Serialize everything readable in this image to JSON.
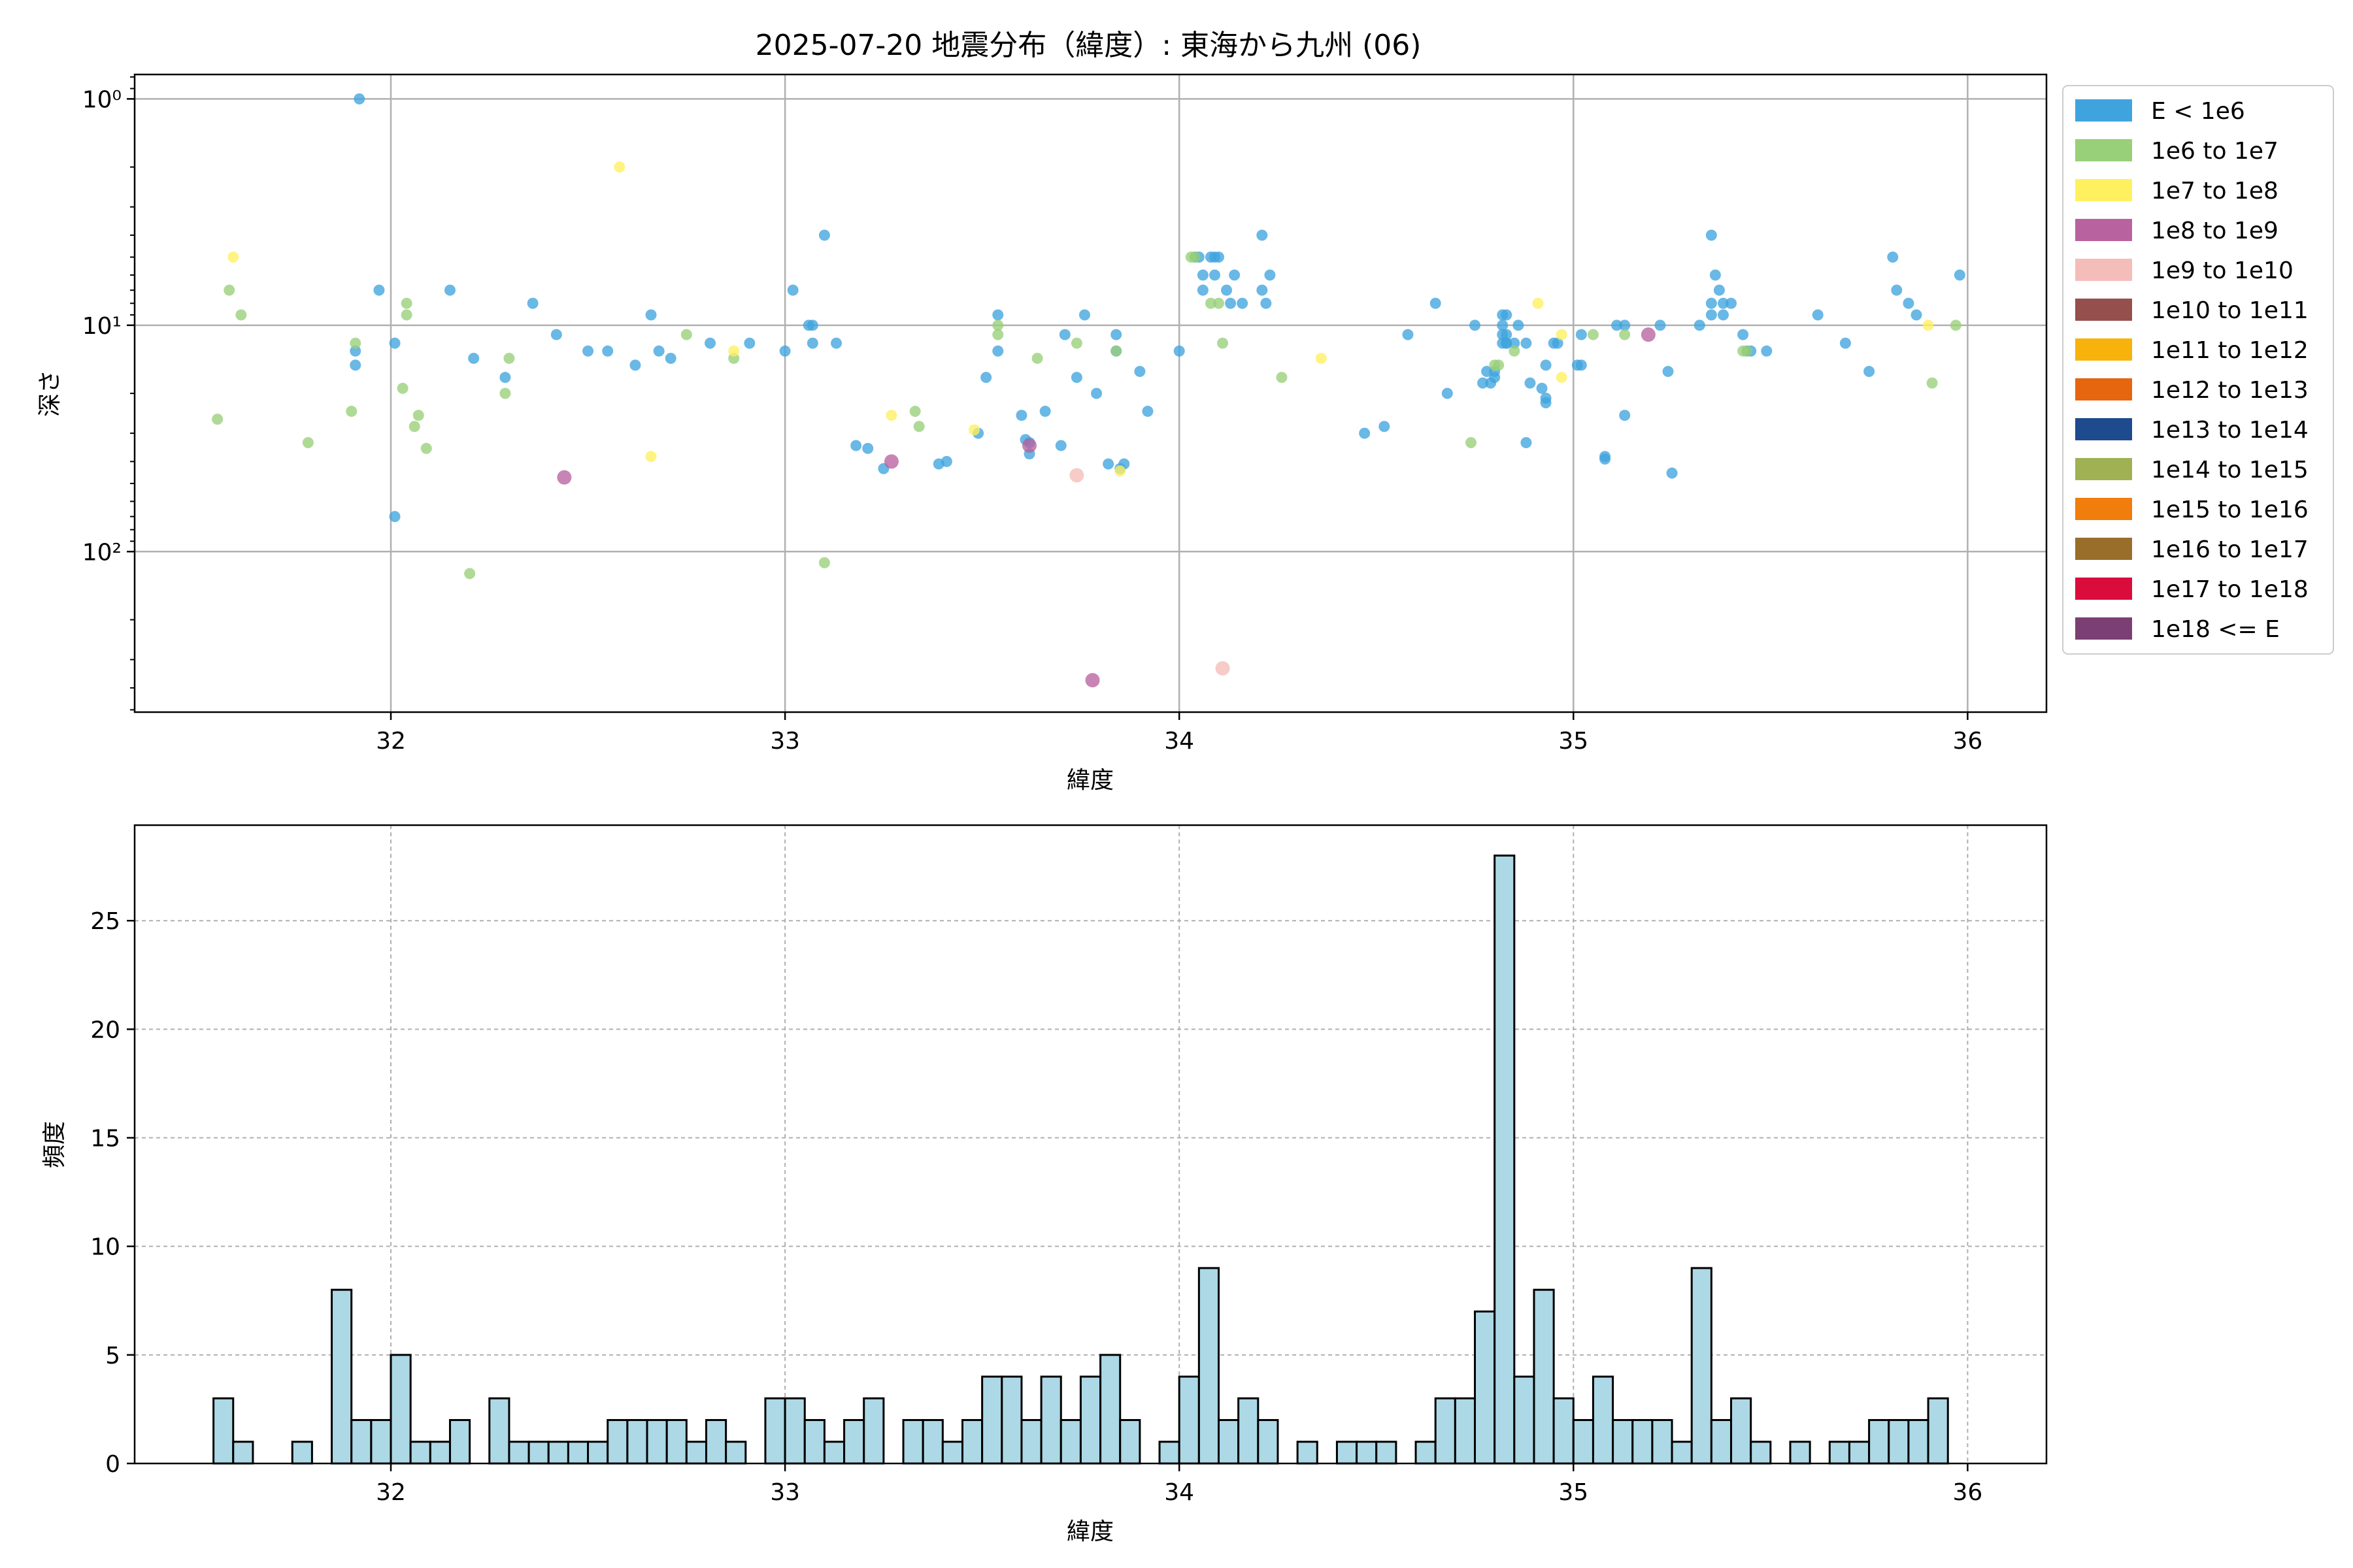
{
  "figure": {
    "title": "2025-07-20 地震分布（緯度）: 東海から九州 (06)"
  },
  "chart_data": [
    {
      "type": "scatter",
      "xlabel": "緯度",
      "ylabel": "深さ",
      "xlim": [
        31.35,
        36.2
      ],
      "ylim": [
        0.78,
        512
      ],
      "y_scale": "log",
      "y_inverted": true,
      "x_ticks": [
        32,
        33,
        34,
        35,
        36
      ],
      "y_ticks": [
        {
          "value": 1,
          "label": "10⁰"
        },
        {
          "value": 10,
          "label": "10¹"
        },
        {
          "value": 100,
          "label": "10²"
        }
      ],
      "grid": true,
      "legend_position": "outside-right-top",
      "legend": [
        {
          "label": "E < 1e6",
          "color": "#3fa4de"
        },
        {
          "label": "1e6 to 1e7",
          "color": "#98cf79"
        },
        {
          "label": "1e7 to 1e8",
          "color": "#fff05f"
        },
        {
          "label": "1e8 to 1e9",
          "color": "#b8629f"
        },
        {
          "label": "1e9 to 1e10",
          "color": "#f4bdb9"
        },
        {
          "label": "1e10 to 1e11",
          "color": "#954f4d"
        },
        {
          "label": "1e11 to 1e12",
          "color": "#f7b30b"
        },
        {
          "label": "1e12 to 1e13",
          "color": "#e6650f"
        },
        {
          "label": "1e13 to 1e14",
          "color": "#1e4a8e"
        },
        {
          "label": "1e14 to 1e15",
          "color": "#9fb152"
        },
        {
          "label": "1e15 to 1e16",
          "color": "#f07d0c"
        },
        {
          "label": "1e16 to 1e17",
          "color": "#996e2b"
        },
        {
          "label": "1e17 to 1e18",
          "color": "#d90c3c"
        },
        {
          "label": "1e18 <= E",
          "color": "#7c3f73"
        }
      ],
      "series": [
        {
          "name": "E < 1e6",
          "points": [
            [
              31.92,
              1
            ],
            [
              31.97,
              7
            ],
            [
              31.91,
              13
            ],
            [
              31.91,
              15
            ],
            [
              32.01,
              12
            ],
            [
              32.01,
              70
            ],
            [
              32.15,
              7
            ],
            [
              32.21,
              14
            ],
            [
              32.29,
              17
            ],
            [
              32.36,
              8
            ],
            [
              32.42,
              11
            ],
            [
              32.5,
              13
            ],
            [
              32.55,
              13
            ],
            [
              32.62,
              15
            ],
            [
              32.66,
              9
            ],
            [
              32.68,
              13
            ],
            [
              32.71,
              14
            ],
            [
              32.81,
              12
            ],
            [
              32.91,
              12
            ],
            [
              33.0,
              13
            ],
            [
              33.02,
              7
            ],
            [
              33.06,
              10
            ],
            [
              33.07,
              10
            ],
            [
              33.07,
              12
            ],
            [
              33.1,
              4
            ],
            [
              33.13,
              12
            ],
            [
              33.18,
              34
            ],
            [
              33.21,
              35
            ],
            [
              33.25,
              43
            ],
            [
              33.39,
              41
            ],
            [
              33.41,
              40
            ],
            [
              33.49,
              30
            ],
            [
              33.51,
              17
            ],
            [
              33.54,
              9
            ],
            [
              33.54,
              13
            ],
            [
              33.6,
              25
            ],
            [
              33.61,
              32
            ],
            [
              33.62,
              33
            ],
            [
              33.62,
              37
            ],
            [
              33.66,
              24
            ],
            [
              33.7,
              34
            ],
            [
              33.71,
              11
            ],
            [
              33.74,
              17
            ],
            [
              33.76,
              9
            ],
            [
              33.79,
              20
            ],
            [
              33.82,
              41
            ],
            [
              33.84,
              11
            ],
            [
              33.84,
              13
            ],
            [
              33.85,
              43
            ],
            [
              33.86,
              41
            ],
            [
              33.9,
              16
            ],
            [
              33.92,
              24
            ],
            [
              34.0,
              13
            ],
            [
              34.04,
              5
            ],
            [
              34.05,
              5
            ],
            [
              34.06,
              6
            ],
            [
              34.06,
              7
            ],
            [
              34.08,
              5
            ],
            [
              34.09,
              5
            ],
            [
              34.09,
              6
            ],
            [
              34.1,
              5
            ],
            [
              34.12,
              7
            ],
            [
              34.13,
              8
            ],
            [
              34.14,
              6
            ],
            [
              34.16,
              8
            ],
            [
              34.21,
              4
            ],
            [
              34.21,
              7
            ],
            [
              34.22,
              8
            ],
            [
              34.23,
              6
            ],
            [
              34.47,
              30
            ],
            [
              34.52,
              28
            ],
            [
              34.58,
              11
            ],
            [
              34.65,
              8
            ],
            [
              34.68,
              20
            ],
            [
              34.75,
              10
            ],
            [
              34.77,
              18
            ],
            [
              34.78,
              16
            ],
            [
              34.79,
              18
            ],
            [
              34.8,
              17
            ],
            [
              34.8,
              16
            ],
            [
              34.82,
              9
            ],
            [
              34.82,
              10
            ],
            [
              34.82,
              11
            ],
            [
              34.82,
              12
            ],
            [
              34.83,
              9
            ],
            [
              34.83,
              11
            ],
            [
              34.83,
              12
            ],
            [
              34.83,
              12
            ],
            [
              34.85,
              12
            ],
            [
              34.86,
              10
            ],
            [
              34.88,
              33
            ],
            [
              34.88,
              12
            ],
            [
              34.89,
              18
            ],
            [
              34.92,
              19
            ],
            [
              34.93,
              21
            ],
            [
              34.93,
              15
            ],
            [
              34.93,
              22
            ],
            [
              34.95,
              12
            ],
            [
              34.96,
              12
            ],
            [
              35.01,
              15
            ],
            [
              35.02,
              15
            ],
            [
              35.02,
              11
            ],
            [
              35.08,
              39
            ],
            [
              35.08,
              38
            ],
            [
              35.11,
              10
            ],
            [
              35.13,
              10
            ],
            [
              35.13,
              25
            ],
            [
              35.22,
              10
            ],
            [
              35.24,
              16
            ],
            [
              35.25,
              45
            ],
            [
              35.32,
              10
            ],
            [
              35.35,
              4
            ],
            [
              35.35,
              9
            ],
            [
              35.35,
              8
            ],
            [
              35.36,
              6
            ],
            [
              35.37,
              7
            ],
            [
              35.38,
              9
            ],
            [
              35.38,
              8
            ],
            [
              35.4,
              8
            ],
            [
              35.43,
              11
            ],
            [
              35.44,
              13
            ],
            [
              35.45,
              13
            ],
            [
              35.49,
              13
            ],
            [
              35.62,
              9
            ],
            [
              35.69,
              12
            ],
            [
              35.75,
              16
            ],
            [
              35.82,
              7
            ],
            [
              35.81,
              5
            ],
            [
              35.85,
              8
            ],
            [
              35.87,
              9
            ],
            [
              35.98,
              6
            ]
          ]
        },
        {
          "name": "1e6 to 1e7",
          "points": [
            [
              31.56,
              26
            ],
            [
              31.59,
              7
            ],
            [
              31.62,
              9
            ],
            [
              31.79,
              33
            ],
            [
              31.9,
              24
            ],
            [
              31.91,
              12
            ],
            [
              32.03,
              19
            ],
            [
              32.04,
              8
            ],
            [
              32.04,
              9
            ],
            [
              32.06,
              28
            ],
            [
              32.07,
              25
            ],
            [
              32.09,
              35
            ],
            [
              32.2,
              125
            ],
            [
              32.29,
              20
            ],
            [
              32.3,
              14
            ],
            [
              32.75,
              11
            ],
            [
              32.87,
              14
            ],
            [
              33.1,
              112
            ],
            [
              33.33,
              24
            ],
            [
              33.34,
              28
            ],
            [
              33.54,
              11
            ],
            [
              33.54,
              10
            ],
            [
              33.64,
              14
            ],
            [
              33.74,
              12
            ],
            [
              33.84,
              13
            ],
            [
              34.03,
              5
            ],
            [
              34.04,
              5
            ],
            [
              34.08,
              8
            ],
            [
              34.1,
              8
            ],
            [
              34.11,
              12
            ],
            [
              34.26,
              17
            ],
            [
              34.74,
              33
            ],
            [
              34.8,
              15
            ],
            [
              34.81,
              15
            ],
            [
              34.85,
              13
            ],
            [
              35.05,
              11
            ],
            [
              35.13,
              11
            ],
            [
              35.43,
              13
            ],
            [
              35.44,
              13
            ],
            [
              35.91,
              18
            ],
            [
              35.97,
              10
            ]
          ]
        },
        {
          "name": "1e7 to 1e8",
          "points": [
            [
              31.6,
              5
            ],
            [
              32.58,
              2
            ],
            [
              32.66,
              38
            ],
            [
              32.87,
              13
            ],
            [
              33.27,
              25
            ],
            [
              33.48,
              29
            ],
            [
              33.85,
              44
            ],
            [
              34.36,
              14
            ],
            [
              34.91,
              8
            ],
            [
              34.97,
              11
            ],
            [
              34.97,
              17
            ],
            [
              35.9,
              10
            ]
          ]
        },
        {
          "name": "1e8 to 1e9",
          "points": [
            [
              32.44,
              47
            ],
            [
              33.27,
              40
            ],
            [
              33.62,
              34
            ],
            [
              33.78,
              370
            ],
            [
              35.19,
              11
            ]
          ]
        },
        {
          "name": "1e9 to 1e10",
          "points": [
            [
              33.74,
              46
            ],
            [
              34.11,
              328
            ]
          ]
        }
      ]
    },
    {
      "type": "bar",
      "xlabel": "緯度",
      "ylabel": "頻度",
      "xlim": [
        31.35,
        36.2
      ],
      "ylim": [
        0,
        29.4
      ],
      "x_ticks": [
        32,
        33,
        34,
        35,
        36
      ],
      "y_ticks": [
        0,
        5,
        10,
        15,
        20,
        25
      ],
      "grid": "dashed",
      "bar_color": "#add8e6",
      "bin_width": 0.05,
      "bins": [
        [
          31.55,
          3
        ],
        [
          31.6,
          1
        ],
        [
          31.75,
          1
        ],
        [
          31.85,
          8
        ],
        [
          31.9,
          2
        ],
        [
          31.95,
          2
        ],
        [
          32.0,
          5
        ],
        [
          32.05,
          1
        ],
        [
          32.1,
          1
        ],
        [
          32.15,
          2
        ],
        [
          32.25,
          3
        ],
        [
          32.3,
          1
        ],
        [
          32.35,
          1
        ],
        [
          32.4,
          1
        ],
        [
          32.45,
          1
        ],
        [
          32.5,
          1
        ],
        [
          32.55,
          2
        ],
        [
          32.6,
          2
        ],
        [
          32.65,
          2
        ],
        [
          32.7,
          2
        ],
        [
          32.75,
          1
        ],
        [
          32.8,
          2
        ],
        [
          32.85,
          1
        ],
        [
          32.95,
          3
        ],
        [
          33.0,
          3
        ],
        [
          33.05,
          2
        ],
        [
          33.1,
          1
        ],
        [
          33.15,
          2
        ],
        [
          33.2,
          3
        ],
        [
          33.3,
          2
        ],
        [
          33.35,
          2
        ],
        [
          33.4,
          1
        ],
        [
          33.45,
          2
        ],
        [
          33.5,
          4
        ],
        [
          33.55,
          4
        ],
        [
          33.6,
          2
        ],
        [
          33.65,
          4
        ],
        [
          33.7,
          2
        ],
        [
          33.75,
          4
        ],
        [
          33.8,
          5
        ],
        [
          33.85,
          2
        ],
        [
          33.95,
          1
        ],
        [
          34.0,
          4
        ],
        [
          34.05,
          9
        ],
        [
          34.1,
          2
        ],
        [
          34.15,
          3
        ],
        [
          34.2,
          2
        ],
        [
          34.3,
          1
        ],
        [
          34.4,
          1
        ],
        [
          34.45,
          1
        ],
        [
          34.5,
          1
        ],
        [
          34.6,
          1
        ],
        [
          34.65,
          3
        ],
        [
          34.7,
          3
        ],
        [
          34.75,
          7
        ],
        [
          34.8,
          28
        ],
        [
          34.85,
          4
        ],
        [
          34.9,
          8
        ],
        [
          34.95,
          3
        ],
        [
          35.0,
          2
        ],
        [
          35.05,
          4
        ],
        [
          35.1,
          2
        ],
        [
          35.15,
          2
        ],
        [
          35.2,
          2
        ],
        [
          35.25,
          1
        ],
        [
          35.3,
          9
        ],
        [
          35.35,
          2
        ],
        [
          35.4,
          3
        ],
        [
          35.45,
          1
        ],
        [
          35.55,
          1
        ],
        [
          35.65,
          1
        ],
        [
          35.7,
          1
        ],
        [
          35.75,
          2
        ],
        [
          35.8,
          2
        ],
        [
          35.85,
          2
        ],
        [
          35.9,
          3
        ]
      ]
    }
  ]
}
